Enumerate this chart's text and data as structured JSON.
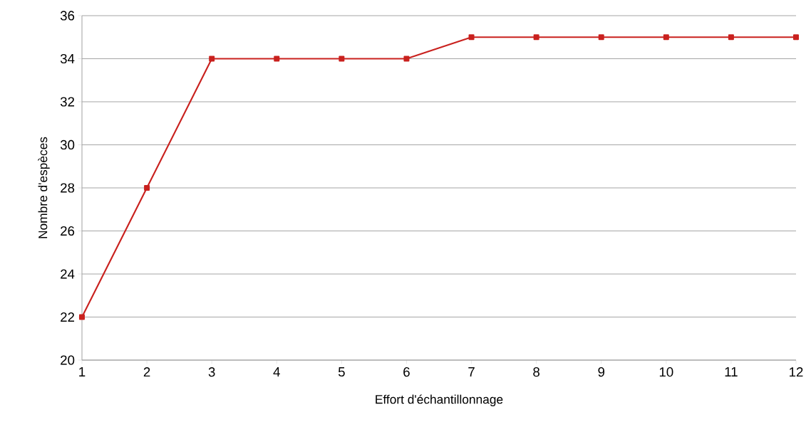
{
  "chart_data": {
    "type": "line",
    "xlabel": "Effort d'échantillonnage",
    "ylabel": "Nombre d'espèces",
    "x": [
      1,
      2,
      3,
      4,
      5,
      6,
      7,
      8,
      9,
      10,
      11,
      12
    ],
    "series": [
      {
        "color": "#c9211e",
        "values": [
          22,
          28,
          34,
          34,
          34,
          34,
          35,
          35,
          35,
          35,
          35,
          35
        ]
      }
    ],
    "xlim": [
      1,
      12
    ],
    "xticks": [
      1,
      2,
      3,
      4,
      5,
      6,
      7,
      8,
      9,
      10,
      11,
      12
    ],
    "ylim": [
      20,
      36
    ],
    "yticks": [
      20,
      22,
      24,
      26,
      28,
      30,
      32,
      34,
      36
    ],
    "grid": "y",
    "marker": "square",
    "line_style": "solid",
    "legend": false
  }
}
